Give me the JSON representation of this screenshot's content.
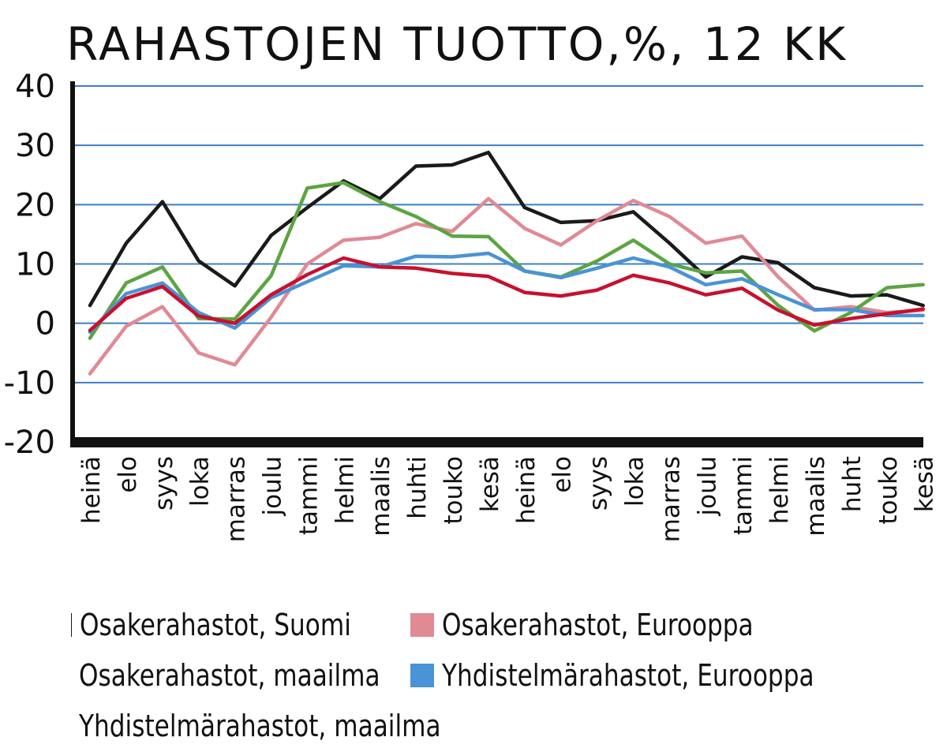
{
  "chart_data": {
    "type": "line",
    "title": "RAHASTOJEN TUOTTO,%, 12 KK",
    "xlabel": "",
    "ylabel": "",
    "ylim": [
      -20,
      40
    ],
    "yticks": [
      40,
      30,
      20,
      10,
      0,
      -10,
      -20
    ],
    "ytick_labels": [
      "40",
      "30",
      "20",
      "10",
      "0",
      "-10",
      "-20"
    ],
    "grid": true,
    "legend_position": "bottom",
    "categories": [
      "heinä",
      "elo",
      "syys",
      "loka",
      "marras",
      "joulu",
      "tammi",
      "helmi",
      "maalis",
      "huhti",
      "touko",
      "kesä",
      "heinä",
      "elo",
      "syys",
      "loka",
      "marras",
      "joulu",
      "tammi",
      "helmi",
      "maalis",
      "huht",
      "touko",
      "kesä"
    ],
    "series": [
      {
        "name": "Osakerahastot, Suomi",
        "color": "#1a1a1a",
        "values": [
          3.0,
          13.5,
          20.5,
          10.5,
          6.3,
          14.8,
          19.5,
          24.0,
          21.0,
          26.5,
          26.7,
          28.8,
          19.5,
          17.0,
          17.3,
          18.8,
          13.5,
          7.8,
          11.2,
          10.2,
          6.0,
          4.6,
          4.8,
          3.0
        ]
      },
      {
        "name": "Osakerahastot, Eurooppa",
        "color": "#e08a94",
        "values": [
          -8.5,
          -0.5,
          2.8,
          -5.0,
          -7.0,
          1.0,
          10.0,
          14.0,
          14.5,
          16.8,
          15.5,
          21.0,
          16.0,
          13.2,
          17.3,
          20.7,
          18.0,
          13.5,
          14.7,
          7.8,
          2.2,
          2.8,
          1.8,
          2.2
        ]
      },
      {
        "name": "Osakerahastot, maailma",
        "color": "#5ca443",
        "values": [
          -2.5,
          6.8,
          9.5,
          0.8,
          0.7,
          8.0,
          22.8,
          23.7,
          20.5,
          18.0,
          14.7,
          14.6,
          8.8,
          7.8,
          10.5,
          14.0,
          10.0,
          8.5,
          8.8,
          3.0,
          -1.3,
          1.8,
          6.0,
          6.5
        ]
      },
      {
        "name": "Yhdistelmärahastot, Eurooppa",
        "color": "#4a93d6",
        "values": [
          -1.5,
          5.0,
          6.8,
          1.8,
          -0.8,
          4.3,
          7.0,
          9.7,
          9.5,
          11.3,
          11.2,
          11.8,
          8.8,
          7.7,
          9.3,
          11.0,
          9.5,
          6.5,
          7.5,
          4.8,
          2.3,
          2.3,
          1.3,
          1.3
        ]
      },
      {
        "name": "Yhdistelmärahastot, maailma",
        "color": "#c8102e",
        "values": [
          -1.2,
          4.2,
          6.2,
          1.2,
          0.0,
          4.8,
          8.2,
          11.0,
          9.5,
          9.3,
          8.4,
          7.9,
          5.2,
          4.6,
          5.6,
          8.1,
          6.8,
          4.8,
          5.9,
          2.2,
          -0.3,
          0.8,
          1.6,
          2.4
        ]
      }
    ]
  }
}
